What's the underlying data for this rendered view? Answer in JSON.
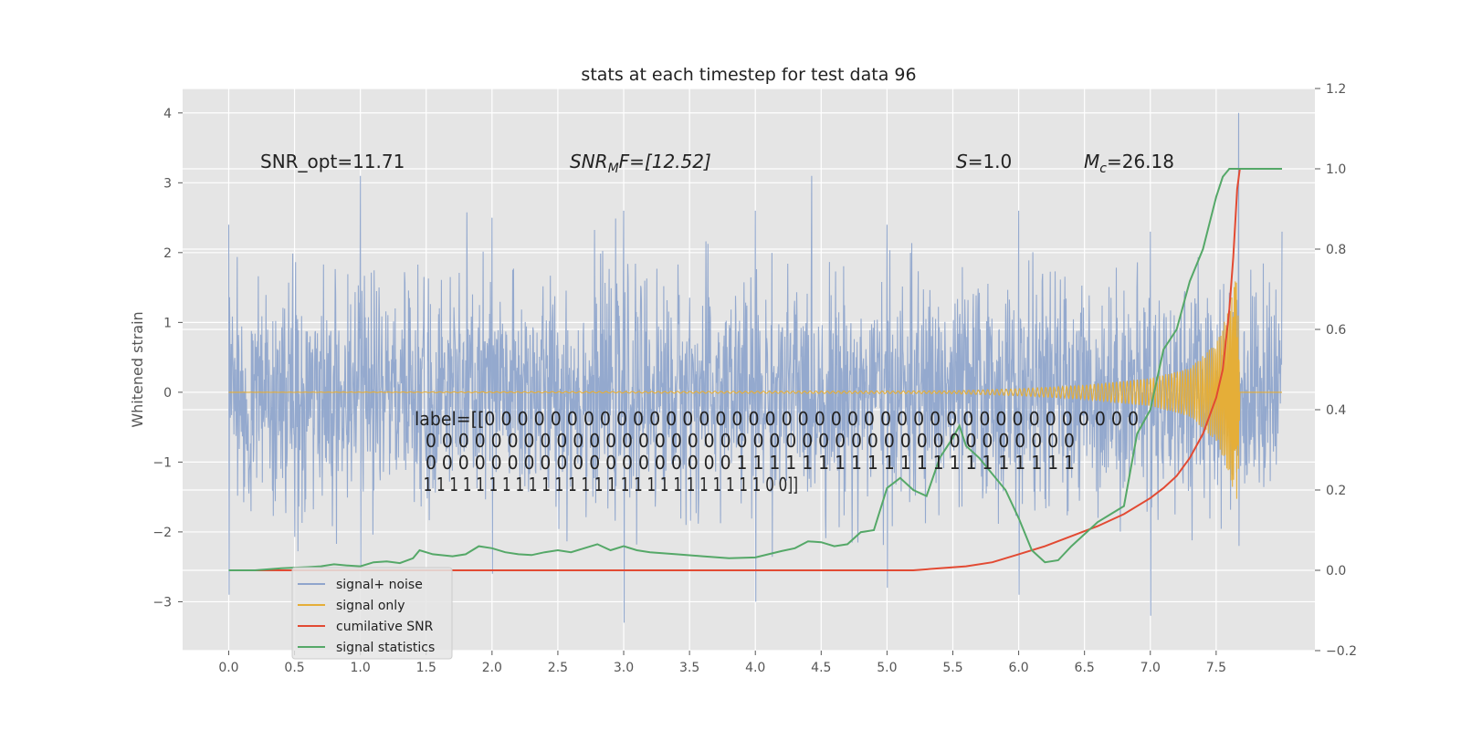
{
  "chart_data": {
    "type": "line",
    "title": "stats at each timestep for test data 96",
    "ylabel": "Whitened strain",
    "ylabel_right": "",
    "xlim": [
      -0.35,
      8.25
    ],
    "ylim": [
      -3.7,
      4.35
    ],
    "ylim_right": [
      -0.2,
      1.2
    ],
    "grid": true,
    "legend_placement": "lower left",
    "x_ticks": [
      "0.0",
      "0.5",
      "1.0",
      "1.5",
      "2.0",
      "2.5",
      "3.0",
      "3.5",
      "4.0",
      "4.5",
      "5.0",
      "5.5",
      "6.0",
      "6.5",
      "7.0",
      "7.5"
    ],
    "x_tick_values": [
      0,
      0.5,
      1,
      1.5,
      2,
      2.5,
      3,
      3.5,
      4,
      4.5,
      5,
      5.5,
      6,
      6.5,
      7,
      7.5
    ],
    "y_ticks": [
      "−3",
      "−2",
      "−1",
      "0",
      "1",
      "2",
      "3",
      "4"
    ],
    "y_tick_values": [
      -3,
      -2,
      -1,
      0,
      1,
      2,
      3,
      4
    ],
    "y_right_ticks": [
      "−0.2",
      "0.0",
      "0.2",
      "0.4",
      "0.6",
      "0.8",
      "1.0",
      "1.2"
    ],
    "y_right_tick_values": [
      -0.2,
      0,
      0.2,
      0.4,
      0.6,
      0.8,
      1.0,
      1.2
    ],
    "annotations": {
      "snr_opt": "SNR_opt=11.71",
      "snr_mf_main": "SNR",
      "snr_mf_sub": "M",
      "snr_mf_rest": "F=[12.52]",
      "s_main": "S",
      "s_rest": "=1.0",
      "mc_main": "M",
      "mc_sub": "c",
      "mc_rest": "=26.18",
      "label_lines": [
        "label=[[0 0 0 0 0 0 0 0 0 0 0 0 0 0 0 0 0 0 0 0 0 0 0 0 0 0 0 0 0 0 0 0 0 0 0 0 0 0 0 0",
        "  0 0 0 0 0 0 0 0 0 0 0 0 0 0 0 0 0 0 0 0 0 0 0 0 0 0 0 0 0 0 0 0 0 0 0 0 0 0 0 0",
        "  0 0 0 0 0 0 0 0 0 0 0 0 0 0 0 0 0 0 0 1 1 1 1 1 1 1 1 1 1 1 1 1 1 1 1 1 1 1 1 1",
        "  1 1 1 1 1 1 1 1 1 1 1 1 1 1 1 1 1 1 1 1 1 1 1 1 1 1 0 0]]"
      ]
    },
    "series": [
      {
        "name": "signal+ noise",
        "axis": "left",
        "color": "#8fa5cc",
        "style": "dense noise, amplitude about ±1.5 with spikes to ±3",
        "envelope_points": [
          {
            "x": 0.0,
            "y": [
              -2.9,
              2.4
            ]
          },
          {
            "x": 1.0,
            "y": [
              -2.5,
              3.1
            ]
          },
          {
            "x": 2.0,
            "y": [
              -2.6,
              2.5
            ]
          },
          {
            "x": 3.0,
            "y": [
              -3.3,
              2.6
            ]
          },
          {
            "x": 4.0,
            "y": [
              -3.0,
              2.6
            ]
          },
          {
            "x": 5.0,
            "y": [
              -2.8,
              2.4
            ]
          },
          {
            "x": 6.0,
            "y": [
              -2.9,
              2.6
            ]
          },
          {
            "x": 7.0,
            "y": [
              -3.2,
              2.3
            ]
          },
          {
            "x": 7.67,
            "y": [
              -2.2,
              4.0
            ]
          },
          {
            "x": 8.0,
            "y": [
              -3.25,
              2.3
            ]
          }
        ]
      },
      {
        "name": "signal only",
        "axis": "left",
        "color": "#e5ae38",
        "style": "chirp growing to merger at t≈7.67",
        "envelope_points": [
          {
            "x": 0.0,
            "y": 0.0
          },
          {
            "x": 5.5,
            "y": 0.02
          },
          {
            "x": 6.0,
            "y": 0.05
          },
          {
            "x": 6.5,
            "y": 0.1
          },
          {
            "x": 7.0,
            "y": 0.2
          },
          {
            "x": 7.3,
            "y": 0.35
          },
          {
            "x": 7.5,
            "y": 0.7
          },
          {
            "x": 7.6,
            "y": 1.2
          },
          {
            "x": 7.67,
            "y": 1.8
          },
          {
            "x": 7.68,
            "y": 0.0
          },
          {
            "x": 8.0,
            "y": 0.0
          }
        ]
      },
      {
        "name": "cumilative SNR",
        "axis": "right",
        "color": "#e24a33",
        "x": [
          0,
          1,
          2,
          3,
          4,
          5,
          5.2,
          5.4,
          5.6,
          5.8,
          6.0,
          6.2,
          6.4,
          6.6,
          6.8,
          7.0,
          7.1,
          7.2,
          7.3,
          7.4,
          7.5,
          7.55,
          7.6,
          7.63,
          7.66,
          7.68,
          8.0
        ],
        "y": [
          0,
          0,
          0,
          0,
          0,
          0,
          0.0,
          0.005,
          0.01,
          0.02,
          0.04,
          0.06,
          0.085,
          0.11,
          0.14,
          0.18,
          0.205,
          0.235,
          0.28,
          0.34,
          0.43,
          0.5,
          0.65,
          0.78,
          0.95,
          1.0,
          1.0
        ]
      },
      {
        "name": "signal statistics",
        "axis": "right",
        "color": "#55a868",
        "x": [
          0,
          0.2,
          0.4,
          0.6,
          0.7,
          0.8,
          0.9,
          1.0,
          1.1,
          1.2,
          1.3,
          1.4,
          1.45,
          1.55,
          1.7,
          1.8,
          1.9,
          2.0,
          2.1,
          2.2,
          2.3,
          2.4,
          2.5,
          2.6,
          2.7,
          2.8,
          2.9,
          3.0,
          3.1,
          3.2,
          3.4,
          3.6,
          3.8,
          4.0,
          4.1,
          4.2,
          4.3,
          4.4,
          4.5,
          4.6,
          4.7,
          4.8,
          4.9,
          5.0,
          5.1,
          5.2,
          5.3,
          5.4,
          5.5,
          5.55,
          5.6,
          5.7,
          5.8,
          5.9,
          6.0,
          6.1,
          6.2,
          6.3,
          6.4,
          6.5,
          6.6,
          6.7,
          6.8,
          6.9,
          7.0,
          7.1,
          7.2,
          7.3,
          7.4,
          7.5,
          7.55,
          7.6,
          7.68,
          8.0
        ],
        "y": [
          0,
          0,
          0.005,
          0.008,
          0.01,
          0.015,
          0.012,
          0.01,
          0.02,
          0.022,
          0.018,
          0.03,
          0.05,
          0.04,
          0.035,
          0.04,
          0.06,
          0.055,
          0.045,
          0.04,
          0.038,
          0.045,
          0.05,
          0.045,
          0.055,
          0.065,
          0.05,
          0.06,
          0.05,
          0.045,
          0.04,
          0.035,
          0.03,
          0.032,
          0.04,
          0.048,
          0.055,
          0.072,
          0.07,
          0.06,
          0.065,
          0.095,
          0.1,
          0.205,
          0.23,
          0.2,
          0.185,
          0.28,
          0.33,
          0.36,
          0.31,
          0.28,
          0.24,
          0.2,
          0.13,
          0.05,
          0.02,
          0.025,
          0.06,
          0.09,
          0.12,
          0.14,
          0.16,
          0.34,
          0.4,
          0.55,
          0.6,
          0.72,
          0.8,
          0.93,
          0.98,
          1.0,
          1.0,
          1.0
        ]
      }
    ]
  }
}
